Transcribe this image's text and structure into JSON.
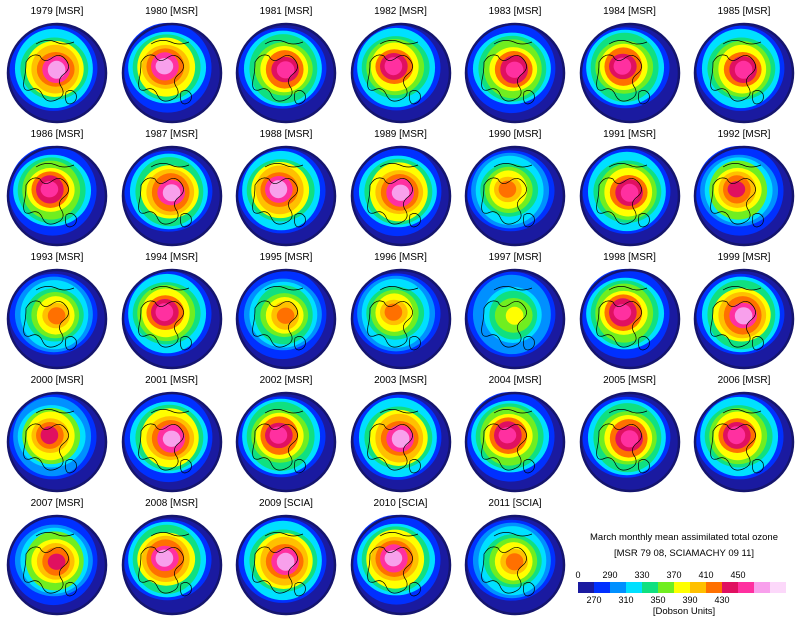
{
  "chart_data": {
    "type": "heatmap",
    "panels": [
      {
        "label": "1979 [MSR]",
        "level": 0.85
      },
      {
        "label": "1980 [MSR]",
        "level": 0.85
      },
      {
        "label": "1981 [MSR]",
        "level": 0.8
      },
      {
        "label": "1982 [MSR]",
        "level": 0.78
      },
      {
        "label": "1983 [MSR]",
        "level": 0.72
      },
      {
        "label": "1984 [MSR]",
        "level": 0.8
      },
      {
        "label": "1985 [MSR]",
        "level": 0.75
      },
      {
        "label": "1986 [MSR]",
        "level": 0.8
      },
      {
        "label": "1987 [MSR]",
        "level": 0.82
      },
      {
        "label": "1988 [MSR]",
        "level": 0.85
      },
      {
        "label": "1989 [MSR]",
        "level": 0.88
      },
      {
        "label": "1990 [MSR]",
        "level": 0.55
      },
      {
        "label": "1991 [MSR]",
        "level": 0.78
      },
      {
        "label": "1992 [MSR]",
        "level": 0.58
      },
      {
        "label": "1993 [MSR]",
        "level": 0.45
      },
      {
        "label": "1994 [MSR]",
        "level": 0.75
      },
      {
        "label": "1995 [MSR]",
        "level": 0.48
      },
      {
        "label": "1996 [MSR]",
        "level": 0.55
      },
      {
        "label": "1997 [MSR]",
        "level": 0.3
      },
      {
        "label": "1998 [MSR]",
        "level": 0.72
      },
      {
        "label": "1999 [MSR]",
        "level": 0.88
      },
      {
        "label": "2000 [MSR]",
        "level": 0.6
      },
      {
        "label": "2001 [MSR]",
        "level": 0.85
      },
      {
        "label": "2002 [MSR]",
        "level": 0.78
      },
      {
        "label": "2003 [MSR]",
        "level": 0.82
      },
      {
        "label": "2004 [MSR]",
        "level": 0.72
      },
      {
        "label": "2005 [MSR]",
        "level": 0.72
      },
      {
        "label": "2006 [MSR]",
        "level": 0.78
      },
      {
        "label": "2007 [MSR]",
        "level": 0.68
      },
      {
        "label": "2008 [MSR]",
        "level": 0.82
      },
      {
        "label": "2009 [SCIA]",
        "level": 0.85
      },
      {
        "label": "2010 [SCIA]",
        "level": 0.88
      },
      {
        "label": "2011 [SCIA]",
        "level": 0.48
      }
    ],
    "legend": {
      "title_line1": "March monthly mean assimilated total ozone",
      "title_line2": "[MSR 79 08, SCIAMACHY 09 11]",
      "units": "[Dobson Units]",
      "top_ticks": [
        "0",
        "290",
        "330",
        "370",
        "410",
        "450"
      ],
      "bottom_ticks": [
        "270",
        "310",
        "350",
        "390",
        "430"
      ],
      "colors": [
        "#1a1aa0",
        "#0030ff",
        "#0090ff",
        "#00e0ff",
        "#10e080",
        "#70ee20",
        "#ffff00",
        "#ffc000",
        "#ff7000",
        "#e01060",
        "#ff30a0",
        "#f8a0ec",
        "#fcd8fa"
      ]
    }
  }
}
